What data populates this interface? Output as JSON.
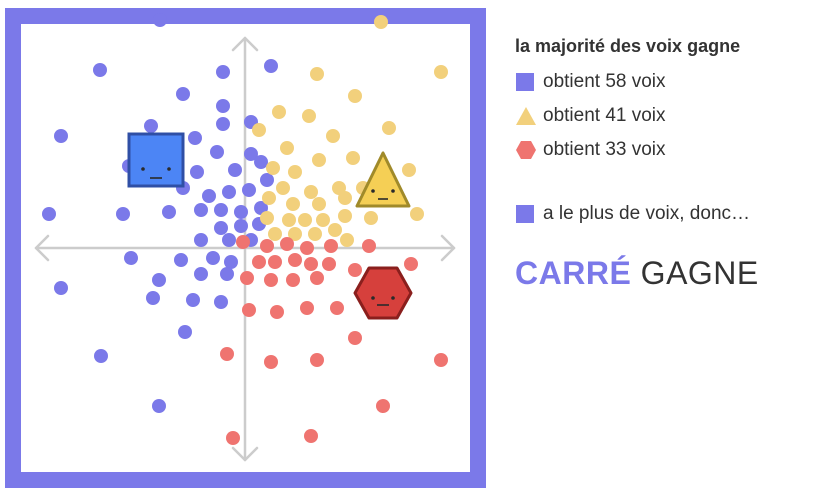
{
  "colors": {
    "frame": "#7b79e9",
    "axis": "#cccccc",
    "square_dot": "#7b79e9",
    "triangle_dot": "#f2d07c",
    "hexagon_dot": "#ef7470",
    "square_fill": "#4c85f5",
    "square_stroke": "#2f4fa5",
    "triangle_fill": "#f5cf55",
    "triangle_stroke": "#a08a2a",
    "hexagon_fill": "#d6403c",
    "hexagon_stroke": "#8a1f1d",
    "winner": "#7b79e9",
    "text": "#333333"
  },
  "candidates": [
    {
      "name": "square-candidate",
      "shape": "square"
    },
    {
      "name": "triangle-candidate",
      "shape": "triangle"
    },
    {
      "name": "hexagon-candidate",
      "shape": "hexagon"
    }
  ],
  "legend": {
    "title": "la majorité des voix gagne",
    "items": [
      {
        "shape": "square",
        "label": "obtient 58 voix"
      },
      {
        "shape": "triangle",
        "label": "obtient 41 voix"
      },
      {
        "shape": "hexagon",
        "label": "obtient 33 voix"
      }
    ],
    "winner_note": "a le plus de voix, donc…"
  },
  "result": {
    "winner": "CARRÉ",
    "verb": "GAGNE"
  }
}
